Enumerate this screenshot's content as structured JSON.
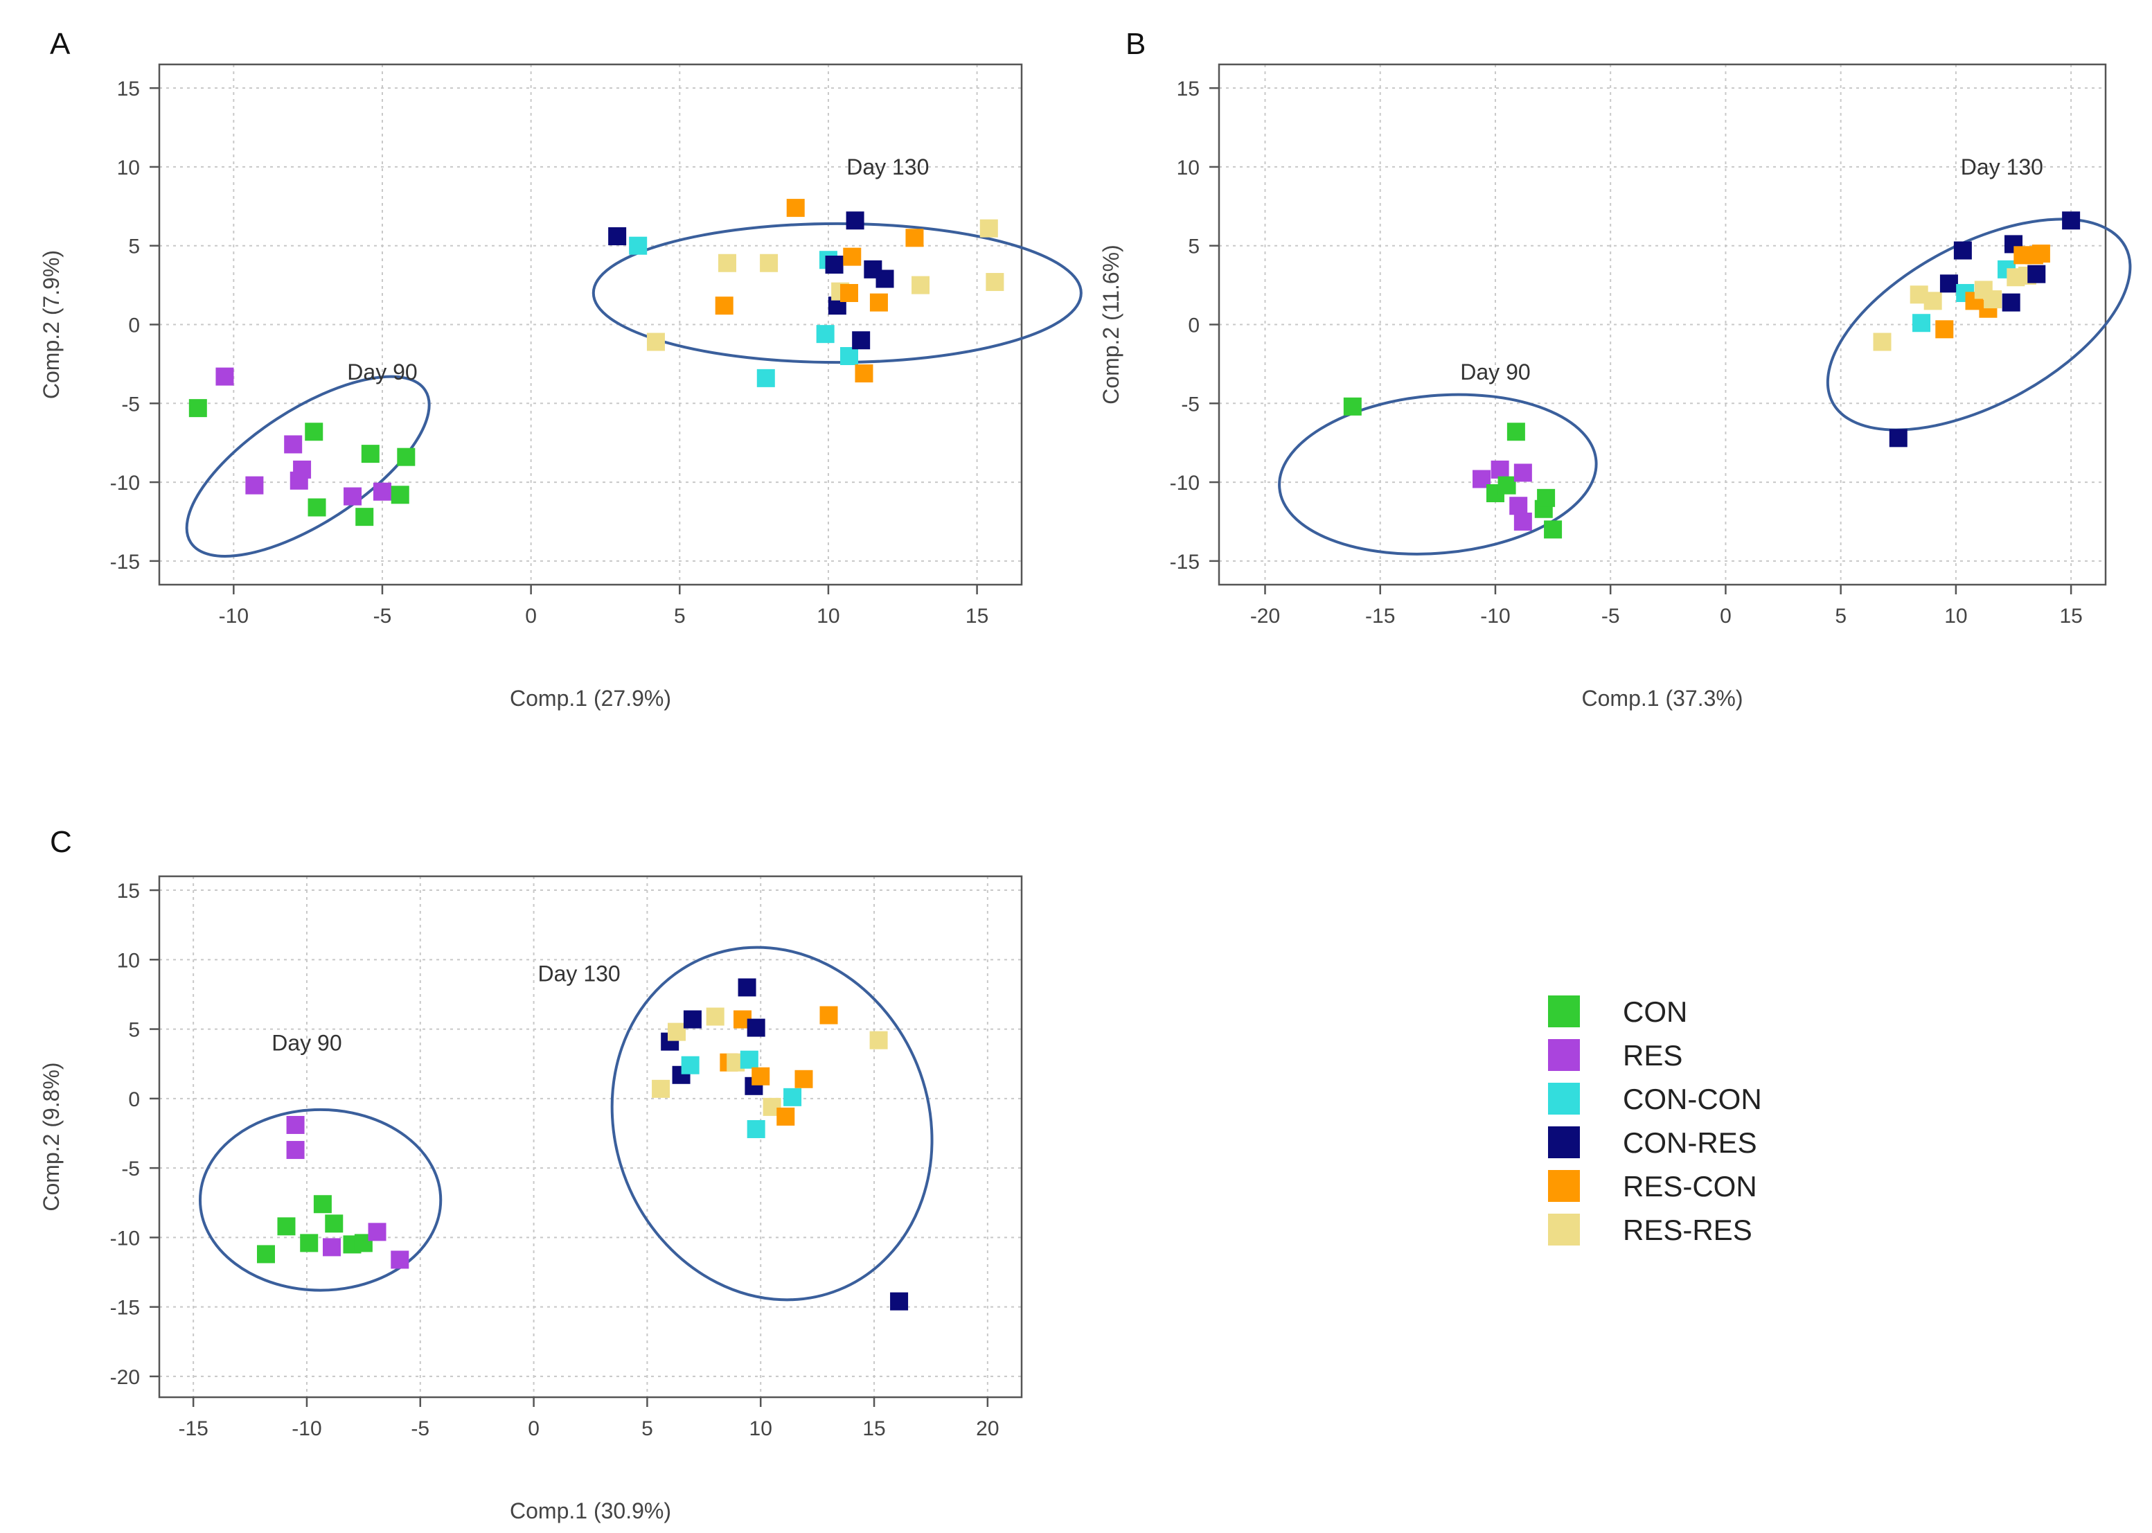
{
  "figure": {
    "legend": [
      {
        "label": "CON",
        "color": "#33cc33",
        "key": "CON"
      },
      {
        "label": "RES",
        "color": "#aa44dd",
        "key": "RES"
      },
      {
        "label": "CON-CON",
        "color": "#33dddd",
        "key": "CON-CON"
      },
      {
        "label": "CON-RES",
        "color": "#0a0a78",
        "key": "CON-RES"
      },
      {
        "label": "RES-CON",
        "color": "#ff9900",
        "key": "RES-CON"
      },
      {
        "label": "RES-RES",
        "color": "#eedd88",
        "key": "RES-RES"
      }
    ]
  },
  "chart_data": [
    {
      "panel": "A",
      "type": "scatter",
      "title": "",
      "xlabel": "Comp.1 (27.9%)",
      "ylabel": "Comp.2 (7.9%)",
      "xlim": [
        -12.5,
        16.5
      ],
      "ylim": [
        -16.5,
        16.5
      ],
      "xticks": [
        -10,
        -5,
        0,
        5,
        10,
        15
      ],
      "yticks": [
        -15,
        -10,
        -5,
        0,
        5,
        10,
        15
      ],
      "grid": true,
      "annotations": [
        {
          "text": "Day 90",
          "x": -5,
          "y": -3
        },
        {
          "text": "Day 130",
          "x": 12,
          "y": 10
        }
      ],
      "ellipses": [
        {
          "cx": -7.5,
          "cy": -9,
          "rx": 4.7,
          "ry": 3.6,
          "angle": -33
        },
        {
          "cx": 10.3,
          "cy": 2,
          "rx": 8.2,
          "ry": 4.4,
          "angle": 0
        }
      ],
      "points": [
        {
          "group": "CON",
          "x": -11.2,
          "y": -5.3
        },
        {
          "group": "RES",
          "x": -10.3,
          "y": -3.3
        },
        {
          "group": "RES",
          "x": -9.3,
          "y": -10.2
        },
        {
          "group": "RES",
          "x": -8.0,
          "y": -7.6
        },
        {
          "group": "RES",
          "x": -7.8,
          "y": -9.9
        },
        {
          "group": "RES",
          "x": -7.7,
          "y": -9.2
        },
        {
          "group": "CON",
          "x": -7.3,
          "y": -6.8
        },
        {
          "group": "CON",
          "x": -7.2,
          "y": -11.6
        },
        {
          "group": "RES",
          "x": -6.0,
          "y": -10.9
        },
        {
          "group": "CON",
          "x": -5.6,
          "y": -12.2
        },
        {
          "group": "CON",
          "x": -5.4,
          "y": -8.2
        },
        {
          "group": "RES",
          "x": -5.0,
          "y": -10.6
        },
        {
          "group": "CON",
          "x": -4.4,
          "y": -10.8
        },
        {
          "group": "CON",
          "x": -4.2,
          "y": -8.4
        },
        {
          "group": "CON-RES",
          "x": 2.9,
          "y": 5.6
        },
        {
          "group": "CON-CON",
          "x": 3.6,
          "y": 5.0
        },
        {
          "group": "RES-RES",
          "x": 4.2,
          "y": -1.1
        },
        {
          "group": "RES-CON",
          "x": 6.5,
          "y": 1.2
        },
        {
          "group": "RES-RES",
          "x": 6.6,
          "y": 3.9
        },
        {
          "group": "CON-CON",
          "x": 7.9,
          "y": -3.4
        },
        {
          "group": "RES-RES",
          "x": 8.0,
          "y": 3.9
        },
        {
          "group": "RES-CON",
          "x": 8.9,
          "y": 7.4
        },
        {
          "group": "CON-CON",
          "x": 9.9,
          "y": -0.6
        },
        {
          "group": "CON-CON",
          "x": 10.0,
          "y": 4.1
        },
        {
          "group": "CON-RES",
          "x": 10.2,
          "y": 3.8
        },
        {
          "group": "CON-RES",
          "x": 10.3,
          "y": 1.2
        },
        {
          "group": "RES-RES",
          "x": 10.4,
          "y": 2.1
        },
        {
          "group": "CON-CON",
          "x": 10.7,
          "y": -2.0
        },
        {
          "group": "RES-CON",
          "x": 10.7,
          "y": 2.0
        },
        {
          "group": "RES-CON",
          "x": 10.8,
          "y": 4.3
        },
        {
          "group": "CON-RES",
          "x": 10.9,
          "y": 6.6
        },
        {
          "group": "CON-RES",
          "x": 11.1,
          "y": -1.0
        },
        {
          "group": "RES-CON",
          "x": 11.2,
          "y": -3.1
        },
        {
          "group": "CON-RES",
          "x": 11.5,
          "y": 3.5
        },
        {
          "group": "RES-CON",
          "x": 11.7,
          "y": 1.4
        },
        {
          "group": "CON-RES",
          "x": 11.9,
          "y": 2.9
        },
        {
          "group": "RES-CON",
          "x": 12.9,
          "y": 5.5
        },
        {
          "group": "RES-RES",
          "x": 13.1,
          "y": 2.5
        },
        {
          "group": "RES-RES",
          "x": 15.4,
          "y": 6.1
        },
        {
          "group": "RES-RES",
          "x": 15.6,
          "y": 2.7
        }
      ]
    },
    {
      "panel": "B",
      "type": "scatter",
      "title": "",
      "xlabel": "Comp.1 (37.3%)",
      "ylabel": "Comp.2 (11.6%)",
      "xlim": [
        -22,
        16.5
      ],
      "ylim": [
        -16.5,
        16.5
      ],
      "xticks": [
        -20,
        -15,
        -10,
        -5,
        0,
        5,
        10,
        15
      ],
      "yticks": [
        -15,
        -10,
        -5,
        0,
        5,
        10,
        15
      ],
      "grid": true,
      "annotations": [
        {
          "text": "Day 90",
          "x": -10,
          "y": -3
        },
        {
          "text": "Day 130",
          "x": 12,
          "y": 10
        }
      ],
      "ellipses": [
        {
          "cx": -12.5,
          "cy": -9.5,
          "rx": 6.9,
          "ry": 5.0,
          "angle": -5
        },
        {
          "cx": 11,
          "cy": 0,
          "rx": 7.2,
          "ry": 5.1,
          "angle": -28
        }
      ],
      "points": [
        {
          "group": "CON",
          "x": -16.2,
          "y": -5.2
        },
        {
          "group": "RES",
          "x": -10.6,
          "y": -9.8
        },
        {
          "group": "CON",
          "x": -10.0,
          "y": -10.7
        },
        {
          "group": "RES",
          "x": -9.8,
          "y": -9.2
        },
        {
          "group": "CON",
          "x": -9.5,
          "y": -10.2
        },
        {
          "group": "CON",
          "x": -9.1,
          "y": -6.8
        },
        {
          "group": "RES",
          "x": -9.0,
          "y": -11.5
        },
        {
          "group": "RES",
          "x": -8.8,
          "y": -9.4
        },
        {
          "group": "RES",
          "x": -8.8,
          "y": -12.5
        },
        {
          "group": "CON",
          "x": -7.9,
          "y": -11.7
        },
        {
          "group": "CON",
          "x": -7.8,
          "y": -11.0
        },
        {
          "group": "CON",
          "x": -7.5,
          "y": -13.0
        },
        {
          "group": "RES-RES",
          "x": 6.8,
          "y": -1.1
        },
        {
          "group": "CON-RES",
          "x": 7.5,
          "y": -7.2
        },
        {
          "group": "RES-RES",
          "x": 8.4,
          "y": 1.9
        },
        {
          "group": "CON-CON",
          "x": 8.5,
          "y": 0.1
        },
        {
          "group": "RES-RES",
          "x": 9.0,
          "y": 1.5
        },
        {
          "group": "RES-CON",
          "x": 9.5,
          "y": -0.3
        },
        {
          "group": "CON-RES",
          "x": 9.7,
          "y": 2.6
        },
        {
          "group": "CON-RES",
          "x": 10.3,
          "y": 4.7
        },
        {
          "group": "CON-CON",
          "x": 10.4,
          "y": 2.0
        },
        {
          "group": "RES-CON",
          "x": 10.8,
          "y": 1.5
        },
        {
          "group": "RES-RES",
          "x": 11.2,
          "y": 2.2
        },
        {
          "group": "RES-CON",
          "x": 11.4,
          "y": 1.0
        },
        {
          "group": "RES-RES",
          "x": 11.6,
          "y": 1.6
        },
        {
          "group": "CON-CON",
          "x": 12.2,
          "y": 3.5
        },
        {
          "group": "CON-RES",
          "x": 12.4,
          "y": 1.4
        },
        {
          "group": "CON-RES",
          "x": 12.5,
          "y": 5.1
        },
        {
          "group": "RES-RES",
          "x": 12.6,
          "y": 3.0
        },
        {
          "group": "RES-CON",
          "x": 12.9,
          "y": 4.4
        },
        {
          "group": "RES-RES",
          "x": 13.1,
          "y": 3.1
        },
        {
          "group": "RES-CON",
          "x": 13.4,
          "y": 4.4
        },
        {
          "group": "CON-RES",
          "x": 13.5,
          "y": 3.2
        },
        {
          "group": "RES-CON",
          "x": 13.7,
          "y": 4.5
        },
        {
          "group": "CON-RES",
          "x": 15.0,
          "y": 6.6
        }
      ]
    },
    {
      "panel": "C",
      "type": "scatter",
      "title": "",
      "xlabel": "Comp.1 (30.9%)",
      "ylabel": "Comp.2 (9.8%)",
      "xlim": [
        -16.5,
        21.5
      ],
      "ylim": [
        -21.5,
        16
      ],
      "xticks": [
        -15,
        -10,
        -5,
        0,
        5,
        10,
        15,
        20
      ],
      "yticks": [
        -20,
        -15,
        -10,
        -5,
        0,
        5,
        10,
        15
      ],
      "grid": true,
      "annotations": [
        {
          "text": "Day 90",
          "x": -10,
          "y": 4
        },
        {
          "text": "Day 130",
          "x": 2,
          "y": 9
        }
      ],
      "ellipses": [
        {
          "cx": -9.4,
          "cy": -7.3,
          "rx": 5.3,
          "ry": 6.5,
          "angle": 0
        },
        {
          "cx": 10.5,
          "cy": -1.8,
          "rx": 6.9,
          "ry": 12.9,
          "angle": -22
        }
      ],
      "points": [
        {
          "group": "CON",
          "x": -11.8,
          "y": -11.2
        },
        {
          "group": "CON",
          "x": -10.9,
          "y": -9.2
        },
        {
          "group": "RES",
          "x": -10.5,
          "y": -1.9
        },
        {
          "group": "RES",
          "x": -10.5,
          "y": -3.7
        },
        {
          "group": "CON",
          "x": -9.9,
          "y": -10.4
        },
        {
          "group": "CON",
          "x": -9.3,
          "y": -7.6
        },
        {
          "group": "RES",
          "x": -8.9,
          "y": -10.7
        },
        {
          "group": "CON",
          "x": -8.8,
          "y": -9.0
        },
        {
          "group": "CON",
          "x": -8.0,
          "y": -10.5
        },
        {
          "group": "CON",
          "x": -7.5,
          "y": -10.4
        },
        {
          "group": "RES",
          "x": -6.9,
          "y": -9.6
        },
        {
          "group": "RES",
          "x": -5.9,
          "y": -11.6
        },
        {
          "group": "RES-RES",
          "x": 5.6,
          "y": 0.7
        },
        {
          "group": "CON-RES",
          "x": 6.0,
          "y": 4.1
        },
        {
          "group": "RES-RES",
          "x": 6.3,
          "y": 4.8
        },
        {
          "group": "CON-RES",
          "x": 6.5,
          "y": 1.7
        },
        {
          "group": "CON-CON",
          "x": 6.9,
          "y": 2.4
        },
        {
          "group": "CON-RES",
          "x": 7.0,
          "y": 5.7
        },
        {
          "group": "RES-RES",
          "x": 8.0,
          "y": 5.9
        },
        {
          "group": "RES-CON",
          "x": 8.6,
          "y": 2.6
        },
        {
          "group": "RES-RES",
          "x": 8.9,
          "y": 2.6
        },
        {
          "group": "RES-CON",
          "x": 9.2,
          "y": 5.7
        },
        {
          "group": "CON-RES",
          "x": 9.4,
          "y": 8.0
        },
        {
          "group": "CON-CON",
          "x": 9.5,
          "y": 2.8
        },
        {
          "group": "CON-RES",
          "x": 9.7,
          "y": 0.9
        },
        {
          "group": "CON-RES",
          "x": 9.8,
          "y": 5.1
        },
        {
          "group": "CON-CON",
          "x": 9.8,
          "y": -2.2
        },
        {
          "group": "RES-CON",
          "x": 10.0,
          "y": 1.6
        },
        {
          "group": "RES-RES",
          "x": 10.5,
          "y": -0.6
        },
        {
          "group": "RES-CON",
          "x": 11.1,
          "y": -1.3
        },
        {
          "group": "CON-CON",
          "x": 11.4,
          "y": 0.1
        },
        {
          "group": "RES-CON",
          "x": 11.9,
          "y": 1.4
        },
        {
          "group": "RES-CON",
          "x": 13.0,
          "y": 6.0
        },
        {
          "group": "RES-RES",
          "x": 15.2,
          "y": 4.2
        },
        {
          "group": "CON-RES",
          "x": 16.1,
          "y": -14.6
        }
      ]
    }
  ]
}
